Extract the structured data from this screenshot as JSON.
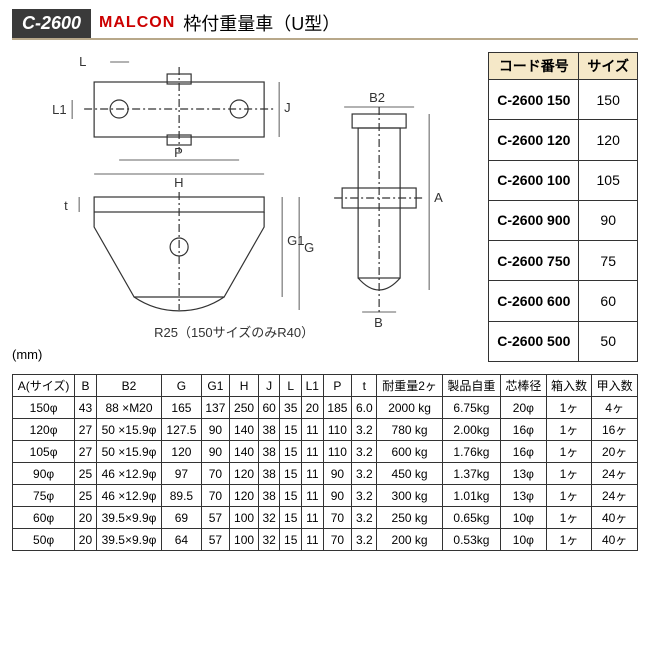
{
  "header": {
    "code": "C-2600",
    "brand": "MALCON",
    "title": "枠付重量車（U型）"
  },
  "note": "R25（150サイズのみR40）",
  "unit": "(mm)",
  "codeTable": {
    "headers": [
      "コード番号",
      "サイズ"
    ],
    "rows": [
      [
        "C-2600 150",
        "150"
      ],
      [
        "C-2600 120",
        "120"
      ],
      [
        "C-2600 100",
        "105"
      ],
      [
        "C-2600 900",
        "90"
      ],
      [
        "C-2600 750",
        "75"
      ],
      [
        "C-2600 600",
        "60"
      ],
      [
        "C-2600 500",
        "50"
      ]
    ]
  },
  "specTable": {
    "headers": [
      "A(サイズ)",
      "B",
      "B2",
      "G",
      "G1",
      "H",
      "J",
      "L",
      "L1",
      "P",
      "t",
      "耐重量2ヶ",
      "製品自重",
      "芯棒径",
      "箱入数",
      "甲入数"
    ],
    "rows": [
      [
        "150φ",
        "43",
        "88 ×M20",
        "165",
        "137",
        "250",
        "60",
        "35",
        "20",
        "185",
        "6.0",
        "2000 kg",
        "6.75kg",
        "20φ",
        "1ヶ",
        "4ヶ"
      ],
      [
        "120φ",
        "27",
        "50 ×15.9φ",
        "127.5",
        "90",
        "140",
        "38",
        "15",
        "11",
        "110",
        "3.2",
        "780 kg",
        "2.00kg",
        "16φ",
        "1ヶ",
        "16ヶ"
      ],
      [
        "105φ",
        "27",
        "50 ×15.9φ",
        "120",
        "90",
        "140",
        "38",
        "15",
        "11",
        "110",
        "3.2",
        "600 kg",
        "1.76kg",
        "16φ",
        "1ヶ",
        "20ヶ"
      ],
      [
        "90φ",
        "25",
        "46 ×12.9φ",
        "97",
        "70",
        "120",
        "38",
        "15",
        "11",
        "90",
        "3.2",
        "450 kg",
        "1.37kg",
        "13φ",
        "1ヶ",
        "24ヶ"
      ],
      [
        "75φ",
        "25",
        "46 ×12.9φ",
        "89.5",
        "70",
        "120",
        "38",
        "15",
        "11",
        "90",
        "3.2",
        "300 kg",
        "1.01kg",
        "13φ",
        "1ヶ",
        "24ヶ"
      ],
      [
        "60φ",
        "20",
        "39.5×9.9φ",
        "69",
        "57",
        "100",
        "32",
        "15",
        "11",
        "70",
        "3.2",
        "250 kg",
        "0.65kg",
        "10φ",
        "1ヶ",
        "40ヶ"
      ],
      [
        "50φ",
        "20",
        "39.5×9.9φ",
        "64",
        "57",
        "100",
        "32",
        "15",
        "11",
        "70",
        "3.2",
        "200 kg",
        "0.53kg",
        "10φ",
        "1ヶ",
        "40ヶ"
      ]
    ]
  },
  "dims": {
    "L": "L",
    "L1": "L1",
    "J": "J",
    "P": "P",
    "H": "H",
    "t": "t",
    "G1": "G1",
    "G": "G",
    "B2": "B2",
    "A": "A",
    "B": "B"
  }
}
